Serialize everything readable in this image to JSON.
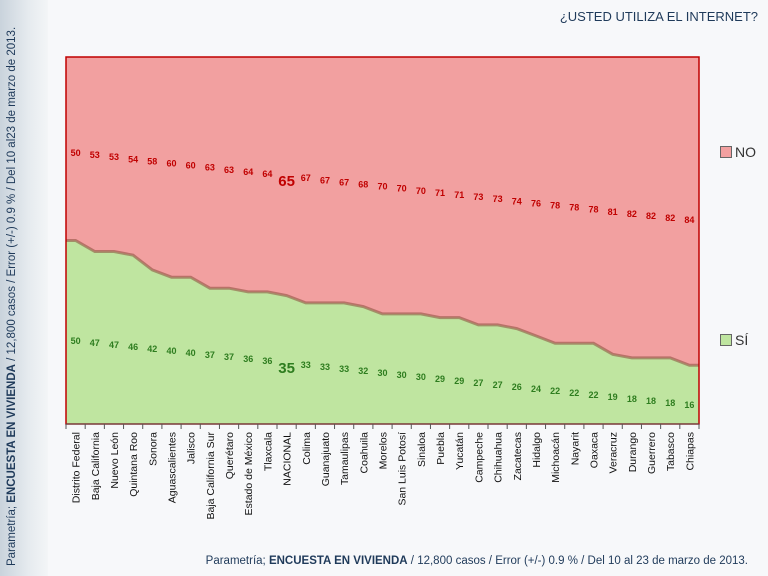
{
  "title": "¿USTED UTILIZA EL INTERNET?",
  "source": {
    "prefix": "Parametría; ",
    "bold": "ENCUESTA EN VIVIENDA",
    "suffix": " / 12,800 casos / Error (+/-) 0.9 % / Del 10 al 23 de marzo de 2013."
  },
  "source_side": {
    "prefix": "Parametría; ",
    "bold": "ENCUESTA EN VIVIENDA",
    "suffix": " / 12,800 casos / Error (+/-) 0.9 % / Del 10 al23 de marzo de 2013."
  },
  "colors": {
    "no": "#f2a0a0",
    "si": "#bfe5a0",
    "no_text": "#c00000",
    "si_text": "#2e7d1f",
    "border": "#c00000"
  },
  "chart_data": {
    "type": "area",
    "stacked": true,
    "title": "¿USTED UTILIZA EL INTERNET?",
    "categories": [
      "Distrito Federal",
      "Baja California",
      "Nuevo León",
      "Quintana Roo",
      "Sonora",
      "Aguascalientes",
      "Jalisco",
      "Baja California Sur",
      "Querétaro",
      "Estado de México",
      "Tlaxcala",
      "NACIONAL",
      "Colima",
      "Guanajuato",
      "Tamaulipas",
      "Coahuila",
      "Morelos",
      "San Luis Potosí",
      "Sinaloa",
      "Puebla",
      "Yucatán",
      "Campeche",
      "Chihuahua",
      "Zacatecas",
      "Hidalgo",
      "Michoacán",
      "Nayarit",
      "Oaxaca",
      "Veracruz",
      "Durango",
      "Guerrero",
      "Tabasco",
      "Chiapas"
    ],
    "series": [
      {
        "name": "SÍ",
        "values": [
          50,
          47,
          47,
          46,
          42,
          40,
          40,
          37,
          37,
          36,
          36,
          35,
          33,
          33,
          33,
          32,
          30,
          30,
          30,
          29,
          29,
          27,
          27,
          26,
          24,
          22,
          22,
          22,
          19,
          18,
          18,
          18,
          16
        ]
      },
      {
        "name": "NO",
        "values": [
          50,
          53,
          53,
          54,
          58,
          60,
          60,
          63,
          63,
          64,
          64,
          65,
          67,
          67,
          67,
          68,
          70,
          70,
          70,
          71,
          71,
          73,
          73,
          74,
          76,
          78,
          78,
          78,
          81,
          82,
          82,
          82,
          84
        ]
      }
    ],
    "highlight": "NACIONAL",
    "ylim": [
      0,
      100
    ],
    "legend": "right"
  }
}
